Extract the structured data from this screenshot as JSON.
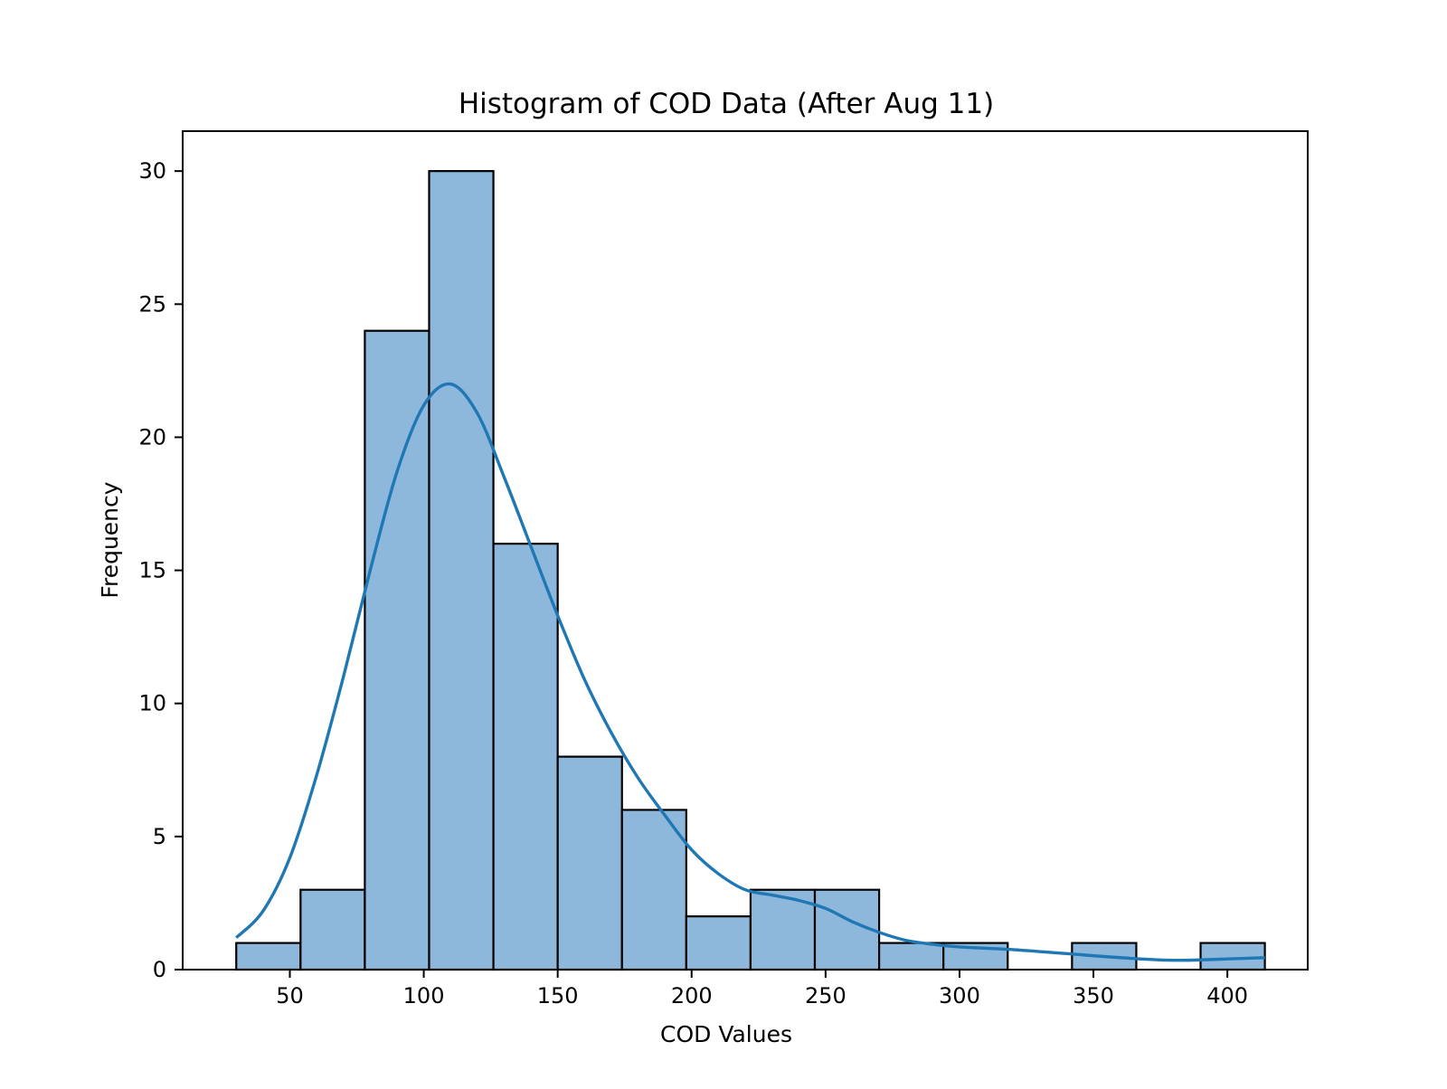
{
  "chart_data": {
    "type": "bar",
    "title": "Histogram of COD Data (After Aug 11)",
    "xlabel": "COD Values",
    "ylabel": "Frequency",
    "xlim": [
      10,
      430
    ],
    "ylim": [
      0,
      31.5
    ],
    "xticks": [
      50,
      100,
      150,
      200,
      250,
      300,
      350,
      400
    ],
    "yticks": [
      0,
      5,
      10,
      15,
      20,
      25,
      30
    ],
    "bins": [
      {
        "start": 30.0,
        "end": 54.0,
        "count": 1
      },
      {
        "start": 54.0,
        "end": 78.0,
        "count": 3
      },
      {
        "start": 78.0,
        "end": 102.0,
        "count": 24
      },
      {
        "start": 102.0,
        "end": 126.0,
        "count": 30
      },
      {
        "start": 126.0,
        "end": 150.0,
        "count": 16
      },
      {
        "start": 150.0,
        "end": 174.0,
        "count": 8
      },
      {
        "start": 174.0,
        "end": 198.0,
        "count": 6
      },
      {
        "start": 198.0,
        "end": 222.0,
        "count": 2
      },
      {
        "start": 222.0,
        "end": 246.0,
        "count": 3
      },
      {
        "start": 246.0,
        "end": 270.0,
        "count": 3
      },
      {
        "start": 270.0,
        "end": 294.0,
        "count": 1
      },
      {
        "start": 294.0,
        "end": 318.0,
        "count": 1
      },
      {
        "start": 318.0,
        "end": 342.0,
        "count": 0
      },
      {
        "start": 342.0,
        "end": 366.0,
        "count": 1
      },
      {
        "start": 366.0,
        "end": 390.0,
        "count": 0
      },
      {
        "start": 390.0,
        "end": 414.0,
        "count": 1
      }
    ],
    "kde": {
      "x": [
        30,
        40,
        50,
        60,
        70,
        80,
        90,
        100,
        110,
        120,
        130,
        140,
        150,
        160,
        170,
        180,
        190,
        200,
        210,
        220,
        230,
        240,
        250,
        260,
        270,
        280,
        290,
        300,
        320,
        340,
        360,
        380,
        400,
        414
      ],
      "y": [
        1.2,
        2.2,
        4.2,
        7.3,
        11.0,
        15.0,
        18.7,
        21.2,
        22.0,
        20.9,
        18.5,
        15.9,
        13.3,
        10.9,
        8.9,
        7.2,
        5.8,
        4.5,
        3.6,
        3.0,
        2.8,
        2.6,
        2.3,
        1.8,
        1.4,
        1.1,
        0.95,
        0.85,
        0.75,
        0.6,
        0.45,
        0.35,
        0.4,
        0.45
      ]
    },
    "colors": {
      "bar_fill": "#8db8dc",
      "bar_edge": "#000000",
      "kde_line": "#1f77b4",
      "axes": "#000000"
    },
    "grid": false,
    "legend": "none"
  }
}
